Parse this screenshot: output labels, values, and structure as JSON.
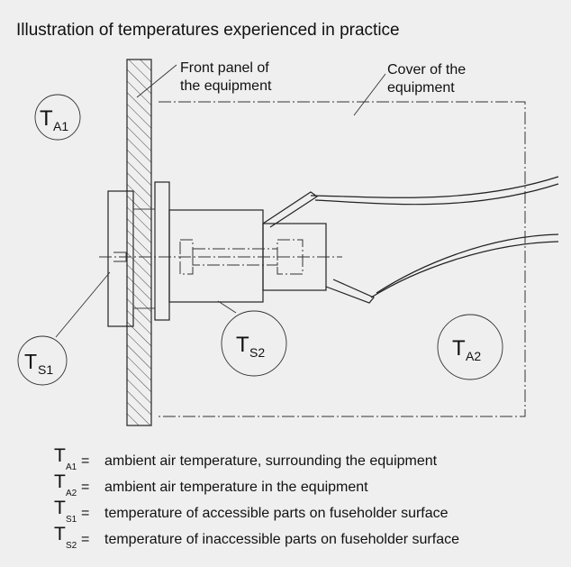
{
  "title": "Illustration of temperatures experienced in practice",
  "callouts": [
    {
      "lines": [
        "Front panel of",
        "the equipment"
      ]
    },
    {
      "lines": [
        "Cover of the",
        "equipment"
      ]
    }
  ],
  "nodes": [
    {
      "symbol": "T",
      "subscript": "A1"
    },
    {
      "symbol": "T",
      "subscript": "S1"
    },
    {
      "symbol": "T",
      "subscript": "S2"
    },
    {
      "symbol": "T",
      "subscript": "A2"
    }
  ],
  "legend": [
    {
      "symbol": "T",
      "subscript": "A1",
      "sign": "=",
      "text": "ambient air temperature, surrounding the equipment"
    },
    {
      "symbol": "T",
      "subscript": "A2",
      "sign": "=",
      "text": "ambient air temperature in the equipment"
    },
    {
      "symbol": "T",
      "subscript": "S1",
      "sign": "=",
      "text": "temperature of accessible parts on fuseholder surface"
    },
    {
      "symbol": "T",
      "subscript": "S2",
      "sign": "=",
      "text": "temperature of inaccessible parts on fuseholder surface"
    }
  ]
}
